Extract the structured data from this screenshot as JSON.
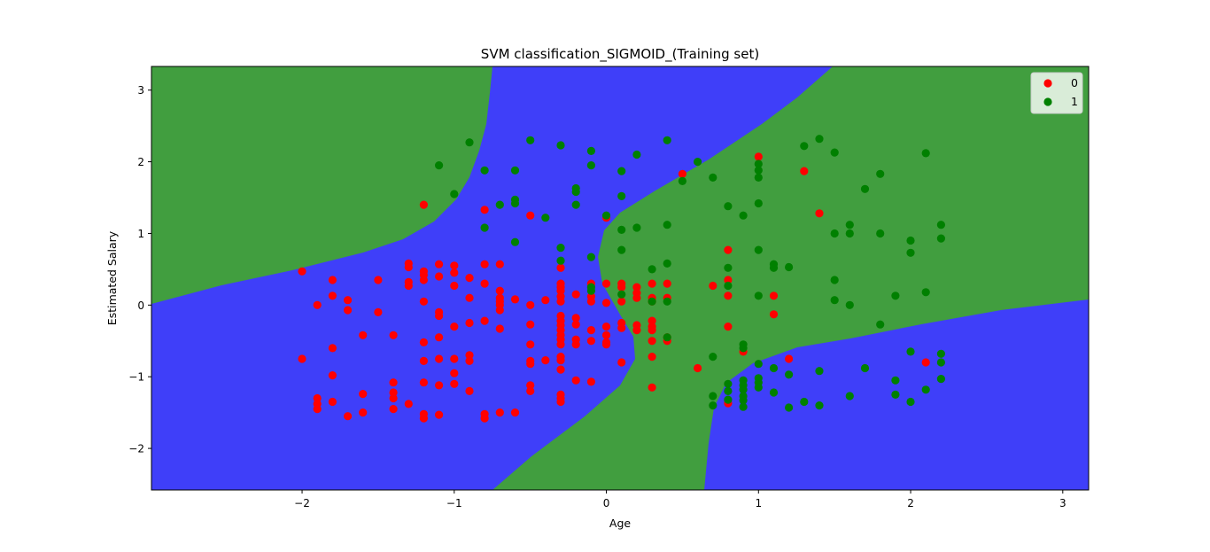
{
  "chart_data": {
    "type": "scatter",
    "title": "SVM classification_SIGMOID_(Training set)",
    "xlabel": "Age",
    "ylabel": "Estimated Salary",
    "xlim": [
      -2.99,
      3.17
    ],
    "ylim": [
      -2.58,
      3.33
    ],
    "x_ticks": [
      -2,
      -1,
      0,
      1,
      2,
      3
    ],
    "x_tick_labels": [
      "−2",
      "−1",
      "0",
      "1",
      "2",
      "3"
    ],
    "y_ticks": [
      -2,
      -1,
      0,
      1,
      2,
      3
    ],
    "y_tick_labels": [
      "−2",
      "−1",
      "0",
      "1",
      "2",
      "3"
    ],
    "grid": false,
    "legend_position": "top-right",
    "region_colors": {
      "0": "#3f3ff9",
      "1": "#419e3f"
    },
    "series": [
      {
        "name": "0",
        "color": "#ff0000",
        "points": [
          [
            -2.0,
            0.47
          ],
          [
            -1.9,
            0.0
          ],
          [
            -1.8,
            0.35
          ],
          [
            -1.8,
            0.13
          ],
          [
            -1.7,
            0.07
          ],
          [
            -1.7,
            -0.07
          ],
          [
            -1.5,
            0.35
          ],
          [
            -1.5,
            -0.1
          ],
          [
            -1.6,
            -0.42
          ],
          [
            -1.4,
            -0.42
          ],
          [
            -1.8,
            -0.6
          ],
          [
            -2.0,
            -0.75
          ],
          [
            -1.8,
            -0.98
          ],
          [
            -1.4,
            -1.08
          ],
          [
            -1.4,
            -1.22
          ],
          [
            -1.6,
            -1.24
          ],
          [
            -1.4,
            -1.3
          ],
          [
            -1.3,
            -1.38
          ],
          [
            -1.4,
            -1.45
          ],
          [
            -1.6,
            -1.5
          ],
          [
            -1.7,
            -1.55
          ],
          [
            -1.9,
            -1.3
          ],
          [
            -1.9,
            -1.38
          ],
          [
            -1.9,
            -1.45
          ],
          [
            -1.8,
            -1.35
          ],
          [
            -1.2,
            -1.08
          ],
          [
            -1.1,
            -1.12
          ],
          [
            -1.2,
            -1.52
          ],
          [
            -1.2,
            -1.58
          ],
          [
            -1.1,
            -1.53
          ],
          [
            -1.0,
            -1.1
          ],
          [
            -1.0,
            -0.95
          ],
          [
            -1.0,
            -0.75
          ],
          [
            -0.9,
            -0.7
          ],
          [
            -0.9,
            -0.78
          ],
          [
            -0.9,
            -1.2
          ],
          [
            -0.8,
            -1.52
          ],
          [
            -0.8,
            -1.58
          ],
          [
            -0.7,
            -1.5
          ],
          [
            -0.6,
            -1.5
          ],
          [
            -1.1,
            -0.75
          ],
          [
            -1.2,
            -0.78
          ],
          [
            -1.2,
            -0.52
          ],
          [
            -1.1,
            -0.45
          ],
          [
            -1.0,
            -0.3
          ],
          [
            -0.9,
            -0.25
          ],
          [
            -0.8,
            -0.22
          ],
          [
            -0.7,
            -0.33
          ],
          [
            -1.2,
            0.05
          ],
          [
            -1.1,
            -0.1
          ],
          [
            -1.1,
            -0.15
          ],
          [
            -1.3,
            0.27
          ],
          [
            -1.3,
            0.32
          ],
          [
            -1.2,
            0.35
          ],
          [
            -1.2,
            0.42
          ],
          [
            -1.2,
            0.47
          ],
          [
            -1.3,
            0.53
          ],
          [
            -1.3,
            0.58
          ],
          [
            -1.1,
            0.4
          ],
          [
            -1.1,
            0.57
          ],
          [
            -1.0,
            0.55
          ],
          [
            -1.0,
            0.45
          ],
          [
            -1.0,
            0.27
          ],
          [
            -0.9,
            0.38
          ],
          [
            -0.9,
            0.1
          ],
          [
            -0.8,
            0.3
          ],
          [
            -0.8,
            0.57
          ],
          [
            -0.7,
            0.57
          ],
          [
            -0.7,
            0.2
          ],
          [
            -0.7,
            0.1
          ],
          [
            -0.7,
            0.05
          ],
          [
            -0.7,
            0.0
          ],
          [
            -0.7,
            -0.07
          ],
          [
            -0.6,
            0.08
          ],
          [
            -0.5,
            0.0
          ],
          [
            -0.5,
            -0.27
          ],
          [
            -0.5,
            -0.55
          ],
          [
            -0.5,
            -0.78
          ],
          [
            -0.5,
            -0.82
          ],
          [
            -0.4,
            -0.77
          ],
          [
            -0.5,
            -1.12
          ],
          [
            -0.5,
            -1.2
          ],
          [
            -0.3,
            -1.25
          ],
          [
            -0.3,
            -1.3
          ],
          [
            -0.3,
            -1.35
          ],
          [
            -0.2,
            -1.05
          ],
          [
            -0.1,
            -1.07
          ],
          [
            -0.3,
            -0.9
          ],
          [
            -0.3,
            -0.77
          ],
          [
            -0.3,
            -0.72
          ],
          [
            -0.3,
            -0.55
          ],
          [
            -0.3,
            -0.48
          ],
          [
            -0.3,
            -0.42
          ],
          [
            -0.3,
            -0.35
          ],
          [
            -0.3,
            -0.28
          ],
          [
            -0.3,
            -0.22
          ],
          [
            -0.3,
            -0.15
          ],
          [
            -0.3,
            0.05
          ],
          [
            -0.3,
            0.12
          ],
          [
            -0.3,
            0.2
          ],
          [
            -0.3,
            0.25
          ],
          [
            -0.3,
            0.3
          ],
          [
            -0.3,
            0.52
          ],
          [
            -0.4,
            0.07
          ],
          [
            -0.2,
            -0.48
          ],
          [
            -0.2,
            -0.55
          ],
          [
            -0.2,
            -0.27
          ],
          [
            -0.2,
            -0.18
          ],
          [
            -0.2,
            0.15
          ],
          [
            -0.1,
            0.3
          ],
          [
            -0.1,
            0.12
          ],
          [
            -0.1,
            0.05
          ],
          [
            -0.1,
            -0.35
          ],
          [
            -0.1,
            -0.5
          ],
          [
            0.0,
            -0.3
          ],
          [
            0.0,
            -0.42
          ],
          [
            0.0,
            -0.52
          ],
          [
            0.0,
            -0.55
          ],
          [
            0.0,
            0.03
          ],
          [
            0.0,
            0.3
          ],
          [
            0.1,
            -0.25
          ],
          [
            0.1,
            -0.32
          ],
          [
            0.1,
            0.05
          ],
          [
            0.1,
            0.25
          ],
          [
            0.1,
            0.3
          ],
          [
            0.2,
            0.25
          ],
          [
            0.2,
            0.17
          ],
          [
            0.2,
            0.1
          ],
          [
            0.2,
            -0.28
          ],
          [
            0.2,
            -0.35
          ],
          [
            0.3,
            0.3
          ],
          [
            0.3,
            0.1
          ],
          [
            0.3,
            0.05
          ],
          [
            0.3,
            -0.22
          ],
          [
            0.3,
            -0.3
          ],
          [
            0.3,
            -0.35
          ],
          [
            0.3,
            -0.5
          ],
          [
            0.3,
            -0.72
          ],
          [
            0.4,
            0.3
          ],
          [
            0.4,
            0.1
          ],
          [
            0.4,
            -0.45
          ],
          [
            0.4,
            -0.5
          ],
          [
            0.3,
            -1.15
          ],
          [
            0.1,
            -0.8
          ],
          [
            -0.5,
            1.25
          ],
          [
            0.0,
            1.22
          ],
          [
            -0.8,
            1.33
          ],
          [
            -1.2,
            1.4
          ],
          [
            0.5,
            1.83
          ],
          [
            0.6,
            -0.88
          ],
          [
            0.7,
            0.27
          ],
          [
            0.8,
            0.77
          ],
          [
            0.8,
            0.35
          ],
          [
            0.8,
            0.13
          ],
          [
            0.8,
            -0.3
          ],
          [
            0.9,
            -0.65
          ],
          [
            1.0,
            2.07
          ],
          [
            1.1,
            0.13
          ],
          [
            1.1,
            -0.13
          ],
          [
            1.2,
            -0.75
          ],
          [
            1.3,
            1.87
          ],
          [
            1.4,
            1.28
          ],
          [
            2.1,
            -0.8
          ],
          [
            0.8,
            -1.37
          ]
        ]
      },
      {
        "name": "1",
        "color": "#008000",
        "points": [
          [
            -1.1,
            1.95
          ],
          [
            -1.0,
            1.55
          ],
          [
            -0.9,
            2.27
          ],
          [
            -0.8,
            1.88
          ],
          [
            -0.8,
            1.08
          ],
          [
            -0.6,
            1.88
          ],
          [
            -0.6,
            1.42
          ],
          [
            -0.6,
            1.47
          ],
          [
            -0.6,
            0.88
          ],
          [
            -0.7,
            1.4
          ],
          [
            -0.5,
            2.3
          ],
          [
            -0.4,
            1.22
          ],
          [
            -0.3,
            2.23
          ],
          [
            -0.3,
            0.8
          ],
          [
            -0.3,
            0.62
          ],
          [
            -0.2,
            1.63
          ],
          [
            -0.2,
            1.58
          ],
          [
            -0.2,
            1.4
          ],
          [
            -0.1,
            2.15
          ],
          [
            -0.1,
            1.95
          ],
          [
            -0.1,
            0.67
          ],
          [
            -0.1,
            0.25
          ],
          [
            -0.1,
            0.2
          ],
          [
            0.0,
            1.25
          ],
          [
            0.1,
            1.87
          ],
          [
            0.1,
            1.52
          ],
          [
            0.1,
            1.05
          ],
          [
            0.1,
            0.77
          ],
          [
            0.1,
            0.15
          ],
          [
            0.2,
            2.1
          ],
          [
            0.2,
            1.08
          ],
          [
            0.3,
            0.5
          ],
          [
            0.3,
            0.05
          ],
          [
            0.4,
            2.3
          ],
          [
            0.4,
            1.12
          ],
          [
            0.4,
            0.58
          ],
          [
            0.4,
            0.05
          ],
          [
            0.4,
            -0.45
          ],
          [
            0.5,
            1.73
          ],
          [
            0.6,
            2.0
          ],
          [
            0.7,
            1.78
          ],
          [
            0.7,
            -0.72
          ],
          [
            0.7,
            -1.27
          ],
          [
            0.7,
            -1.4
          ],
          [
            0.8,
            1.38
          ],
          [
            0.8,
            0.52
          ],
          [
            0.8,
            0.27
          ],
          [
            0.8,
            -1.1
          ],
          [
            0.8,
            -1.2
          ],
          [
            0.8,
            -1.32
          ],
          [
            0.9,
            1.25
          ],
          [
            0.9,
            -0.55
          ],
          [
            0.9,
            -0.6
          ],
          [
            0.9,
            -1.05
          ],
          [
            0.9,
            -1.12
          ],
          [
            0.9,
            -1.18
          ],
          [
            0.9,
            -1.27
          ],
          [
            0.9,
            -1.33
          ],
          [
            0.9,
            -1.42
          ],
          [
            1.0,
            1.97
          ],
          [
            1.0,
            1.88
          ],
          [
            1.0,
            1.78
          ],
          [
            1.0,
            1.42
          ],
          [
            1.0,
            0.77
          ],
          [
            1.0,
            0.13
          ],
          [
            1.0,
            -0.82
          ],
          [
            1.0,
            -1.02
          ],
          [
            1.0,
            -1.08
          ],
          [
            1.0,
            -1.15
          ],
          [
            1.1,
            0.57
          ],
          [
            1.1,
            0.52
          ],
          [
            1.1,
            -0.88
          ],
          [
            1.1,
            -1.22
          ],
          [
            1.2,
            0.53
          ],
          [
            1.2,
            -0.97
          ],
          [
            1.2,
            -1.43
          ],
          [
            1.3,
            2.22
          ],
          [
            1.3,
            -1.35
          ],
          [
            1.4,
            2.32
          ],
          [
            1.4,
            -0.92
          ],
          [
            1.4,
            -1.4
          ],
          [
            1.5,
            2.13
          ],
          [
            1.5,
            1.0
          ],
          [
            1.5,
            0.35
          ],
          [
            1.5,
            0.07
          ],
          [
            1.6,
            1.12
          ],
          [
            1.6,
            1.0
          ],
          [
            1.6,
            0.0
          ],
          [
            1.6,
            -1.27
          ],
          [
            1.7,
            1.62
          ],
          [
            1.7,
            -0.88
          ],
          [
            1.8,
            1.83
          ],
          [
            1.8,
            1.0
          ],
          [
            1.8,
            -0.27
          ],
          [
            1.9,
            0.13
          ],
          [
            1.9,
            -1.05
          ],
          [
            1.9,
            -1.25
          ],
          [
            2.0,
            0.9
          ],
          [
            2.0,
            0.73
          ],
          [
            2.0,
            -0.65
          ],
          [
            2.0,
            -1.35
          ],
          [
            2.1,
            2.12
          ],
          [
            2.1,
            0.18
          ],
          [
            2.1,
            -1.18
          ],
          [
            2.2,
            1.12
          ],
          [
            2.2,
            0.93
          ],
          [
            2.2,
            -0.68
          ],
          [
            2.2,
            -0.8
          ],
          [
            2.2,
            -1.03
          ]
        ]
      }
    ]
  }
}
